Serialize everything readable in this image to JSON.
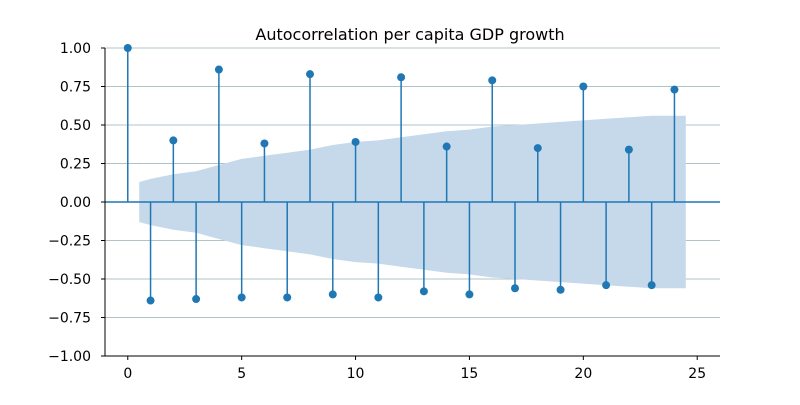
{
  "chart_data": {
    "type": "stem",
    "title": "Autocorrelation per capita GDP growth",
    "xlabel": "",
    "ylabel": "",
    "xlim": [
      -1,
      26
    ],
    "ylim": [
      -1.0,
      1.0
    ],
    "x_ticks": [
      0,
      5,
      10,
      15,
      20,
      25
    ],
    "y_ticks": [
      -1.0,
      -0.75,
      -0.5,
      -0.25,
      0.0,
      0.25,
      0.5,
      0.75,
      1.0
    ],
    "x_tick_labels": [
      "0",
      "5",
      "10",
      "15",
      "20",
      "25"
    ],
    "y_tick_labels": [
      "−1.00",
      "−0.75",
      "−0.50",
      "−0.25",
      "0.00",
      "0.25",
      "0.50",
      "0.75",
      "1.00"
    ],
    "grid": "horizontal",
    "lags": [
      0,
      1,
      2,
      3,
      4,
      5,
      6,
      7,
      8,
      9,
      10,
      11,
      12,
      13,
      14,
      15,
      16,
      17,
      18,
      19,
      20,
      21,
      22,
      23,
      24
    ],
    "acf": [
      1.0,
      -0.64,
      0.4,
      -0.63,
      0.86,
      -0.62,
      0.38,
      -0.62,
      0.83,
      -0.6,
      0.39,
      -0.62,
      0.81,
      -0.58,
      0.36,
      -0.6,
      0.79,
      -0.56,
      0.35,
      -0.57,
      0.75,
      -0.54,
      0.34,
      -0.54,
      0.73
    ],
    "confidence_band": {
      "lags": [
        0.5,
        1,
        2,
        3,
        4,
        5,
        6,
        7,
        8,
        9,
        10,
        11,
        12,
        13,
        14,
        15,
        16,
        17,
        18,
        19,
        20,
        21,
        22,
        23,
        24,
        24.5
      ],
      "upper": [
        0.13,
        0.15,
        0.18,
        0.2,
        0.24,
        0.28,
        0.3,
        0.32,
        0.34,
        0.37,
        0.39,
        0.4,
        0.42,
        0.44,
        0.46,
        0.47,
        0.49,
        0.5,
        0.51,
        0.52,
        0.53,
        0.54,
        0.55,
        0.56,
        0.56,
        0.56
      ],
      "lower": [
        -0.13,
        -0.15,
        -0.18,
        -0.2,
        -0.24,
        -0.28,
        -0.3,
        -0.32,
        -0.34,
        -0.37,
        -0.39,
        -0.4,
        -0.42,
        -0.44,
        -0.46,
        -0.47,
        -0.49,
        -0.5,
        -0.51,
        -0.52,
        -0.53,
        -0.54,
        -0.55,
        -0.56,
        -0.56,
        -0.56
      ]
    },
    "colors": {
      "stem": "#1f77b4",
      "band": "#c5d9eb",
      "grid": "#b0c4c8",
      "axis": "#000000",
      "zero_line": "#1f77b4"
    }
  }
}
